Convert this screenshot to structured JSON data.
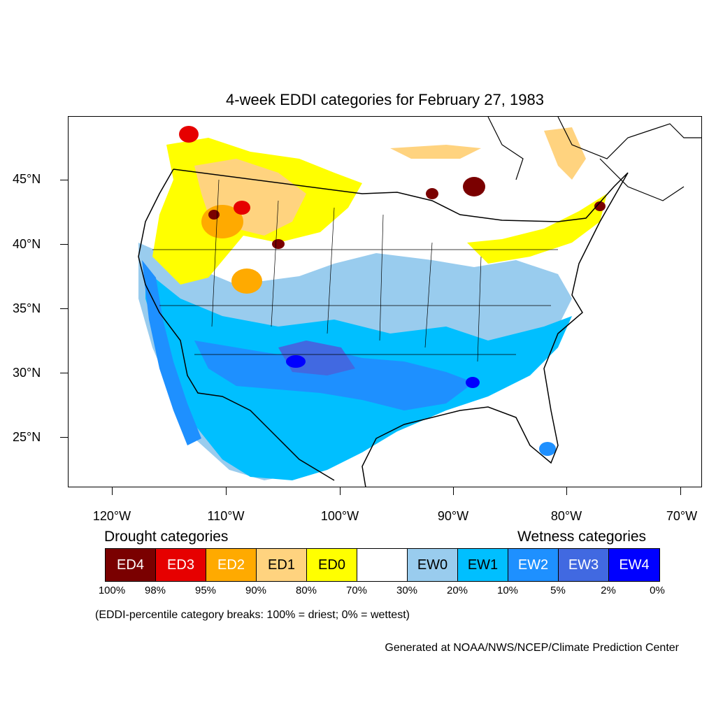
{
  "title": "4-week EDDI categories for February 27, 1983",
  "map": {
    "lat_labels": [
      "45°N",
      "40°N",
      "35°N",
      "30°N",
      "25°N"
    ],
    "lon_labels": [
      "120°W",
      "110°W",
      "100°W",
      "90°W",
      "80°W",
      "70°W"
    ]
  },
  "legend": {
    "drought_heading": "Drought categories",
    "wetness_heading": "Wetness categories",
    "categories": [
      {
        "label": "ED4",
        "color": "#7a0000",
        "text_color": "#ffffff"
      },
      {
        "label": "ED3",
        "color": "#e60000",
        "text_color": "#ffffff"
      },
      {
        "label": "ED2",
        "color": "#ffaa00",
        "text_color": "#ffffff"
      },
      {
        "label": "ED1",
        "color": "#ffd37f",
        "text_color": "#000000"
      },
      {
        "label": "ED0",
        "color": "#ffff00",
        "text_color": "#000000"
      },
      {
        "label": "",
        "color": "#ffffff",
        "text_color": "#000000"
      },
      {
        "label": "EW0",
        "color": "#99ccee",
        "text_color": "#000000"
      },
      {
        "label": "EW1",
        "color": "#00bfff",
        "text_color": "#000000"
      },
      {
        "label": "EW2",
        "color": "#1e90ff",
        "text_color": "#ffffff"
      },
      {
        "label": "EW3",
        "color": "#4169e1",
        "text_color": "#ffffff"
      },
      {
        "label": "EW4",
        "color": "#0000ff",
        "text_color": "#ffffff"
      }
    ],
    "percent_breaks": [
      "100%",
      "98%",
      "95%",
      "90%",
      "80%",
      "70%",
      "30%",
      "20%",
      "10%",
      "5%",
      "2%",
      "0%"
    ]
  },
  "note": "(EDDI-percentile category breaks: 100% = driest; 0% = wettest)",
  "credit": "Generated at NOAA/NWS/NCEP/Climate Prediction Center"
}
